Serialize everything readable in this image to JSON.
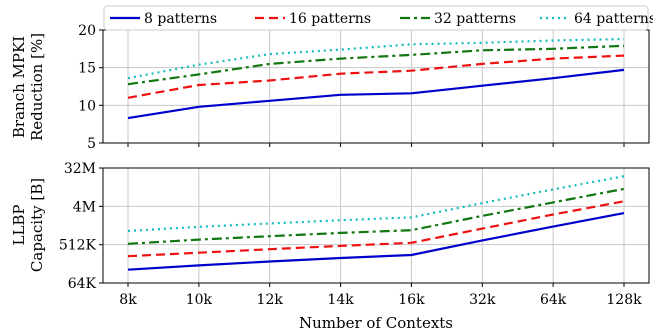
{
  "chart_data": [
    {
      "type": "line",
      "ylabel": [
        "Branch MPKI",
        "Reduction [%]"
      ],
      "categories": [
        "8k",
        "10k",
        "12k",
        "14k",
        "16k",
        "32k",
        "64k",
        "128k"
      ],
      "ylim": [
        5,
        20
      ],
      "yticks": [
        5,
        10,
        15,
        20
      ],
      "ytick_labels": [
        "5",
        "10",
        "15",
        "20"
      ],
      "grid": true,
      "legend": "top",
      "series": [
        {
          "name": "8 patterns",
          "color": "#0000cc",
          "dash": "solid",
          "values": [
            8.3,
            9.8,
            10.6,
            11.4,
            11.6,
            12.6,
            13.6,
            14.7
          ]
        },
        {
          "name": "16 patterns",
          "color": "#ee1111",
          "dash": "dashed",
          "values": [
            11.0,
            12.7,
            13.3,
            14.2,
            14.6,
            15.5,
            16.2,
            16.6
          ]
        },
        {
          "name": "32 patterns",
          "color": "#117711",
          "dash": "dashdot",
          "values": [
            12.8,
            14.1,
            15.5,
            16.2,
            16.7,
            17.3,
            17.5,
            17.9
          ]
        },
        {
          "name": "64 patterns",
          "color": "#11bbbb",
          "dash": "dotted",
          "values": [
            13.6,
            15.4,
            16.8,
            17.4,
            18.1,
            18.3,
            18.6,
            18.8
          ]
        }
      ]
    },
    {
      "type": "line",
      "ylabel": [
        "LLBP",
        "Capacity [B]"
      ],
      "xlabel": "Number of Contexts",
      "categories": [
        "8k",
        "10k",
        "12k",
        "14k",
        "16k",
        "32k",
        "64k",
        "128k"
      ],
      "yscale": "log2",
      "ylim": [
        65536,
        33554432
      ],
      "yticks": [
        65536,
        524288,
        4194304,
        33554432
      ],
      "ytick_labels": [
        "64K",
        "512K",
        "4M",
        "32M"
      ],
      "grid": true,
      "series": [
        {
          "name": "8 patterns",
          "color": "#0000cc",
          "dash": "solid",
          "values": [
            135000,
            170000,
            210000,
            255000,
            300000,
            660000,
            1400000,
            2900000
          ]
        },
        {
          "name": "16 patterns",
          "color": "#ee1111",
          "dash": "dashed",
          "values": [
            280000,
            340000,
            410000,
            490000,
            580000,
            1250000,
            2700000,
            5500000
          ]
        },
        {
          "name": "32 patterns",
          "color": "#117711",
          "dash": "dashdot",
          "values": [
            550000,
            690000,
            830000,
            990000,
            1150000,
            2500000,
            5200000,
            10800000
          ]
        },
        {
          "name": "64 patterns",
          "color": "#11bbbb",
          "dash": "dotted",
          "values": [
            1100000,
            1380000,
            1650000,
            1980000,
            2300000,
            5000000,
            10500000,
            21500000
          ]
        }
      ]
    }
  ]
}
